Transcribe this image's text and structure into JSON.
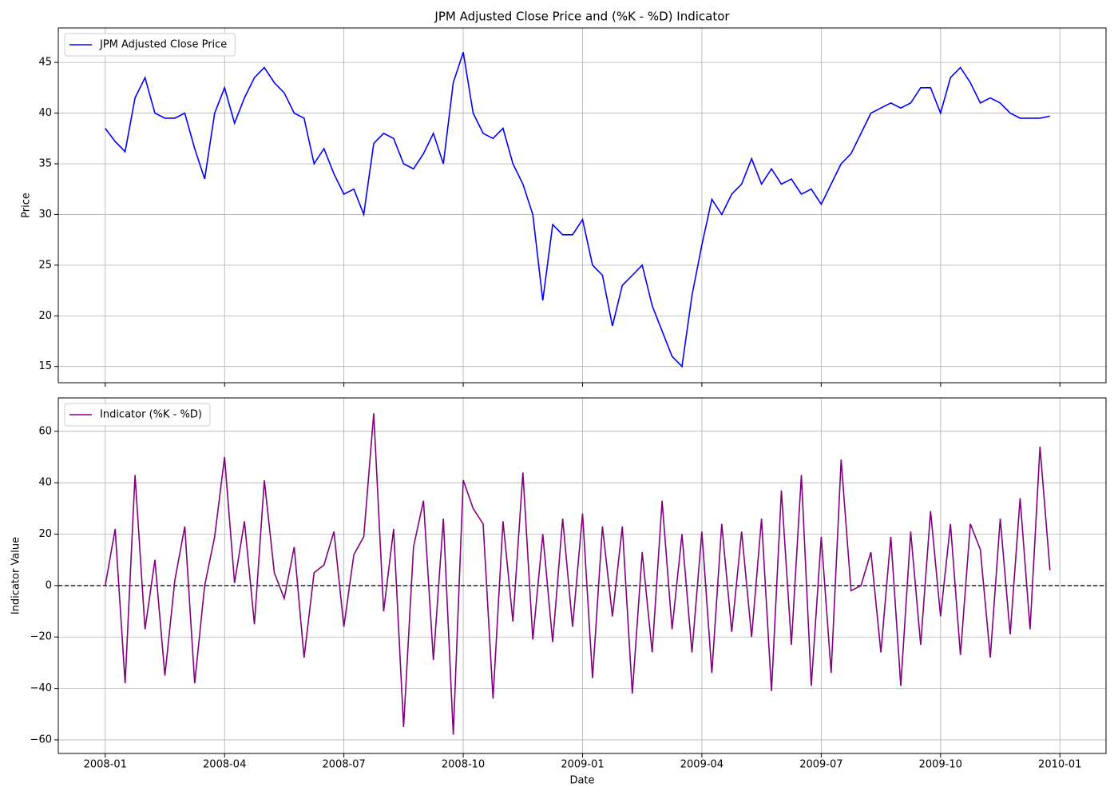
{
  "chart_data": [
    {
      "type": "line",
      "title": "JPM Adjusted Close Price and (%K - %D) Indicator",
      "ylabel": "Price",
      "x": [
        "2008-01",
        "2008-01",
        "2008-01",
        "2008-01",
        "2008-02",
        "2008-02",
        "2008-02",
        "2008-02",
        "2008-03",
        "2008-03",
        "2008-03",
        "2008-03",
        "2008-04",
        "2008-04",
        "2008-04",
        "2008-04",
        "2008-05",
        "2008-05",
        "2008-05",
        "2008-05",
        "2008-06",
        "2008-06",
        "2008-06",
        "2008-06",
        "2008-07",
        "2008-07",
        "2008-07",
        "2008-07",
        "2008-08",
        "2008-08",
        "2008-08",
        "2008-08",
        "2008-09",
        "2008-09",
        "2008-09",
        "2008-09",
        "2008-10",
        "2008-10",
        "2008-10",
        "2008-10",
        "2008-11",
        "2008-11",
        "2008-11",
        "2008-11",
        "2008-12",
        "2008-12",
        "2008-12",
        "2008-12",
        "2009-01",
        "2009-01",
        "2009-01",
        "2009-01",
        "2009-02",
        "2009-02",
        "2009-02",
        "2009-02",
        "2009-03",
        "2009-03",
        "2009-03",
        "2009-03",
        "2009-04",
        "2009-04",
        "2009-04",
        "2009-04",
        "2009-05",
        "2009-05",
        "2009-05",
        "2009-05",
        "2009-06",
        "2009-06",
        "2009-06",
        "2009-06",
        "2009-07",
        "2009-07",
        "2009-07",
        "2009-07",
        "2009-08",
        "2009-08",
        "2009-08",
        "2009-08",
        "2009-09",
        "2009-09",
        "2009-09",
        "2009-09",
        "2009-10",
        "2009-10",
        "2009-10",
        "2009-10",
        "2009-11",
        "2009-11",
        "2009-11",
        "2009-11",
        "2009-12",
        "2009-12",
        "2009-12",
        "2009-12"
      ],
      "series": [
        {
          "name": "JPM Adjusted Close Price",
          "color": "#0000ff",
          "values": [
            38.5,
            37.2,
            36.2,
            41.5,
            43.5,
            40,
            39.5,
            39.5,
            40,
            36.5,
            33.5,
            40,
            42.5,
            39,
            41.5,
            43.5,
            44.5,
            43,
            42,
            40,
            39.5,
            35,
            36.5,
            34,
            32,
            32.5,
            30,
            37,
            38,
            37.5,
            35,
            34.5,
            36,
            38,
            35,
            43,
            46,
            40,
            38,
            37.5,
            38.5,
            35,
            33,
            30,
            21.5,
            29,
            28,
            28,
            29.5,
            25,
            24,
            19,
            23,
            24,
            25,
            21,
            18.5,
            16,
            15,
            22,
            27,
            31.5,
            30,
            32,
            33,
            35.5,
            33,
            34.5,
            33,
            33.5,
            32,
            32.5,
            31,
            33,
            35,
            36,
            38,
            40,
            40.5,
            41,
            40.5,
            41,
            42.5,
            42.5,
            40,
            43.5,
            44.5,
            43,
            41,
            41.5,
            41,
            40,
            39.5,
            39.5,
            39.5,
            39.7
          ]
        }
      ],
      "ylim": [
        13.4,
        48.4
      ],
      "yticks": [
        15,
        20,
        25,
        30,
        35,
        40,
        45
      ],
      "grid": true,
      "legend": "upper left"
    },
    {
      "type": "line",
      "xlabel": "Date",
      "ylabel": "Indicator Value",
      "x": [
        "2008-01",
        "2008-01",
        "2008-01",
        "2008-01",
        "2008-02",
        "2008-02",
        "2008-02",
        "2008-02",
        "2008-03",
        "2008-03",
        "2008-03",
        "2008-03",
        "2008-04",
        "2008-04",
        "2008-04",
        "2008-04",
        "2008-05",
        "2008-05",
        "2008-05",
        "2008-05",
        "2008-06",
        "2008-06",
        "2008-06",
        "2008-06",
        "2008-07",
        "2008-07",
        "2008-07",
        "2008-07",
        "2008-08",
        "2008-08",
        "2008-08",
        "2008-08",
        "2008-09",
        "2008-09",
        "2008-09",
        "2008-09",
        "2008-10",
        "2008-10",
        "2008-10",
        "2008-10",
        "2008-11",
        "2008-11",
        "2008-11",
        "2008-11",
        "2008-12",
        "2008-12",
        "2008-12",
        "2008-12",
        "2009-01",
        "2009-01",
        "2009-01",
        "2009-01",
        "2009-02",
        "2009-02",
        "2009-02",
        "2009-02",
        "2009-03",
        "2009-03",
        "2009-03",
        "2009-03",
        "2009-04",
        "2009-04",
        "2009-04",
        "2009-04",
        "2009-05",
        "2009-05",
        "2009-05",
        "2009-05",
        "2009-06",
        "2009-06",
        "2009-06",
        "2009-06",
        "2009-07",
        "2009-07",
        "2009-07",
        "2009-07",
        "2009-08",
        "2009-08",
        "2009-08",
        "2009-08",
        "2009-09",
        "2009-09",
        "2009-09",
        "2009-09",
        "2009-10",
        "2009-10",
        "2009-10",
        "2009-10",
        "2009-11",
        "2009-11",
        "2009-11",
        "2009-11",
        "2009-12",
        "2009-12",
        "2009-12",
        "2009-12"
      ],
      "series": [
        {
          "name": "Indicator (%K - %D)",
          "color": "#800080",
          "values": [
            0,
            22,
            -38,
            43,
            -17,
            10,
            -35,
            2,
            23,
            -38,
            0,
            19,
            50,
            1,
            25,
            -15,
            41,
            5,
            -5,
            15,
            -28,
            5,
            8,
            21,
            -16,
            12,
            19,
            67,
            -10,
            22,
            -55,
            15,
            33,
            -29,
            26,
            -58,
            41,
            30,
            24,
            -44,
            25,
            -14,
            44,
            -21,
            20,
            -22,
            26,
            -16,
            28,
            -36,
            23,
            -12,
            23,
            -42,
            13,
            -26,
            33,
            -17,
            20,
            -26,
            21,
            -34,
            24,
            -18,
            21,
            -20,
            26,
            -41,
            37,
            -23,
            43,
            -39,
            19,
            -34,
            49,
            -2,
            0,
            13,
            -26,
            19,
            -39,
            21,
            -23,
            29,
            -12,
            24,
            -27,
            24,
            14,
            -28,
            26,
            -19,
            34,
            -17,
            54,
            6
          ]
        }
      ],
      "hline": 0,
      "ylim": [
        -65.3,
        73
      ],
      "yticks": [
        {
          "value": -60,
          "label": "−60"
        },
        {
          "value": -40,
          "label": "−40"
        },
        {
          "value": -20,
          "label": "−20"
        },
        0,
        20,
        40,
        60
      ],
      "xticks": [
        "2008-01",
        "2008-04",
        "2008-07",
        "2008-10",
        "2009-01",
        "2009-04",
        "2009-07",
        "2009-10",
        "2010-01"
      ],
      "grid": true,
      "legend": "upper left"
    }
  ]
}
